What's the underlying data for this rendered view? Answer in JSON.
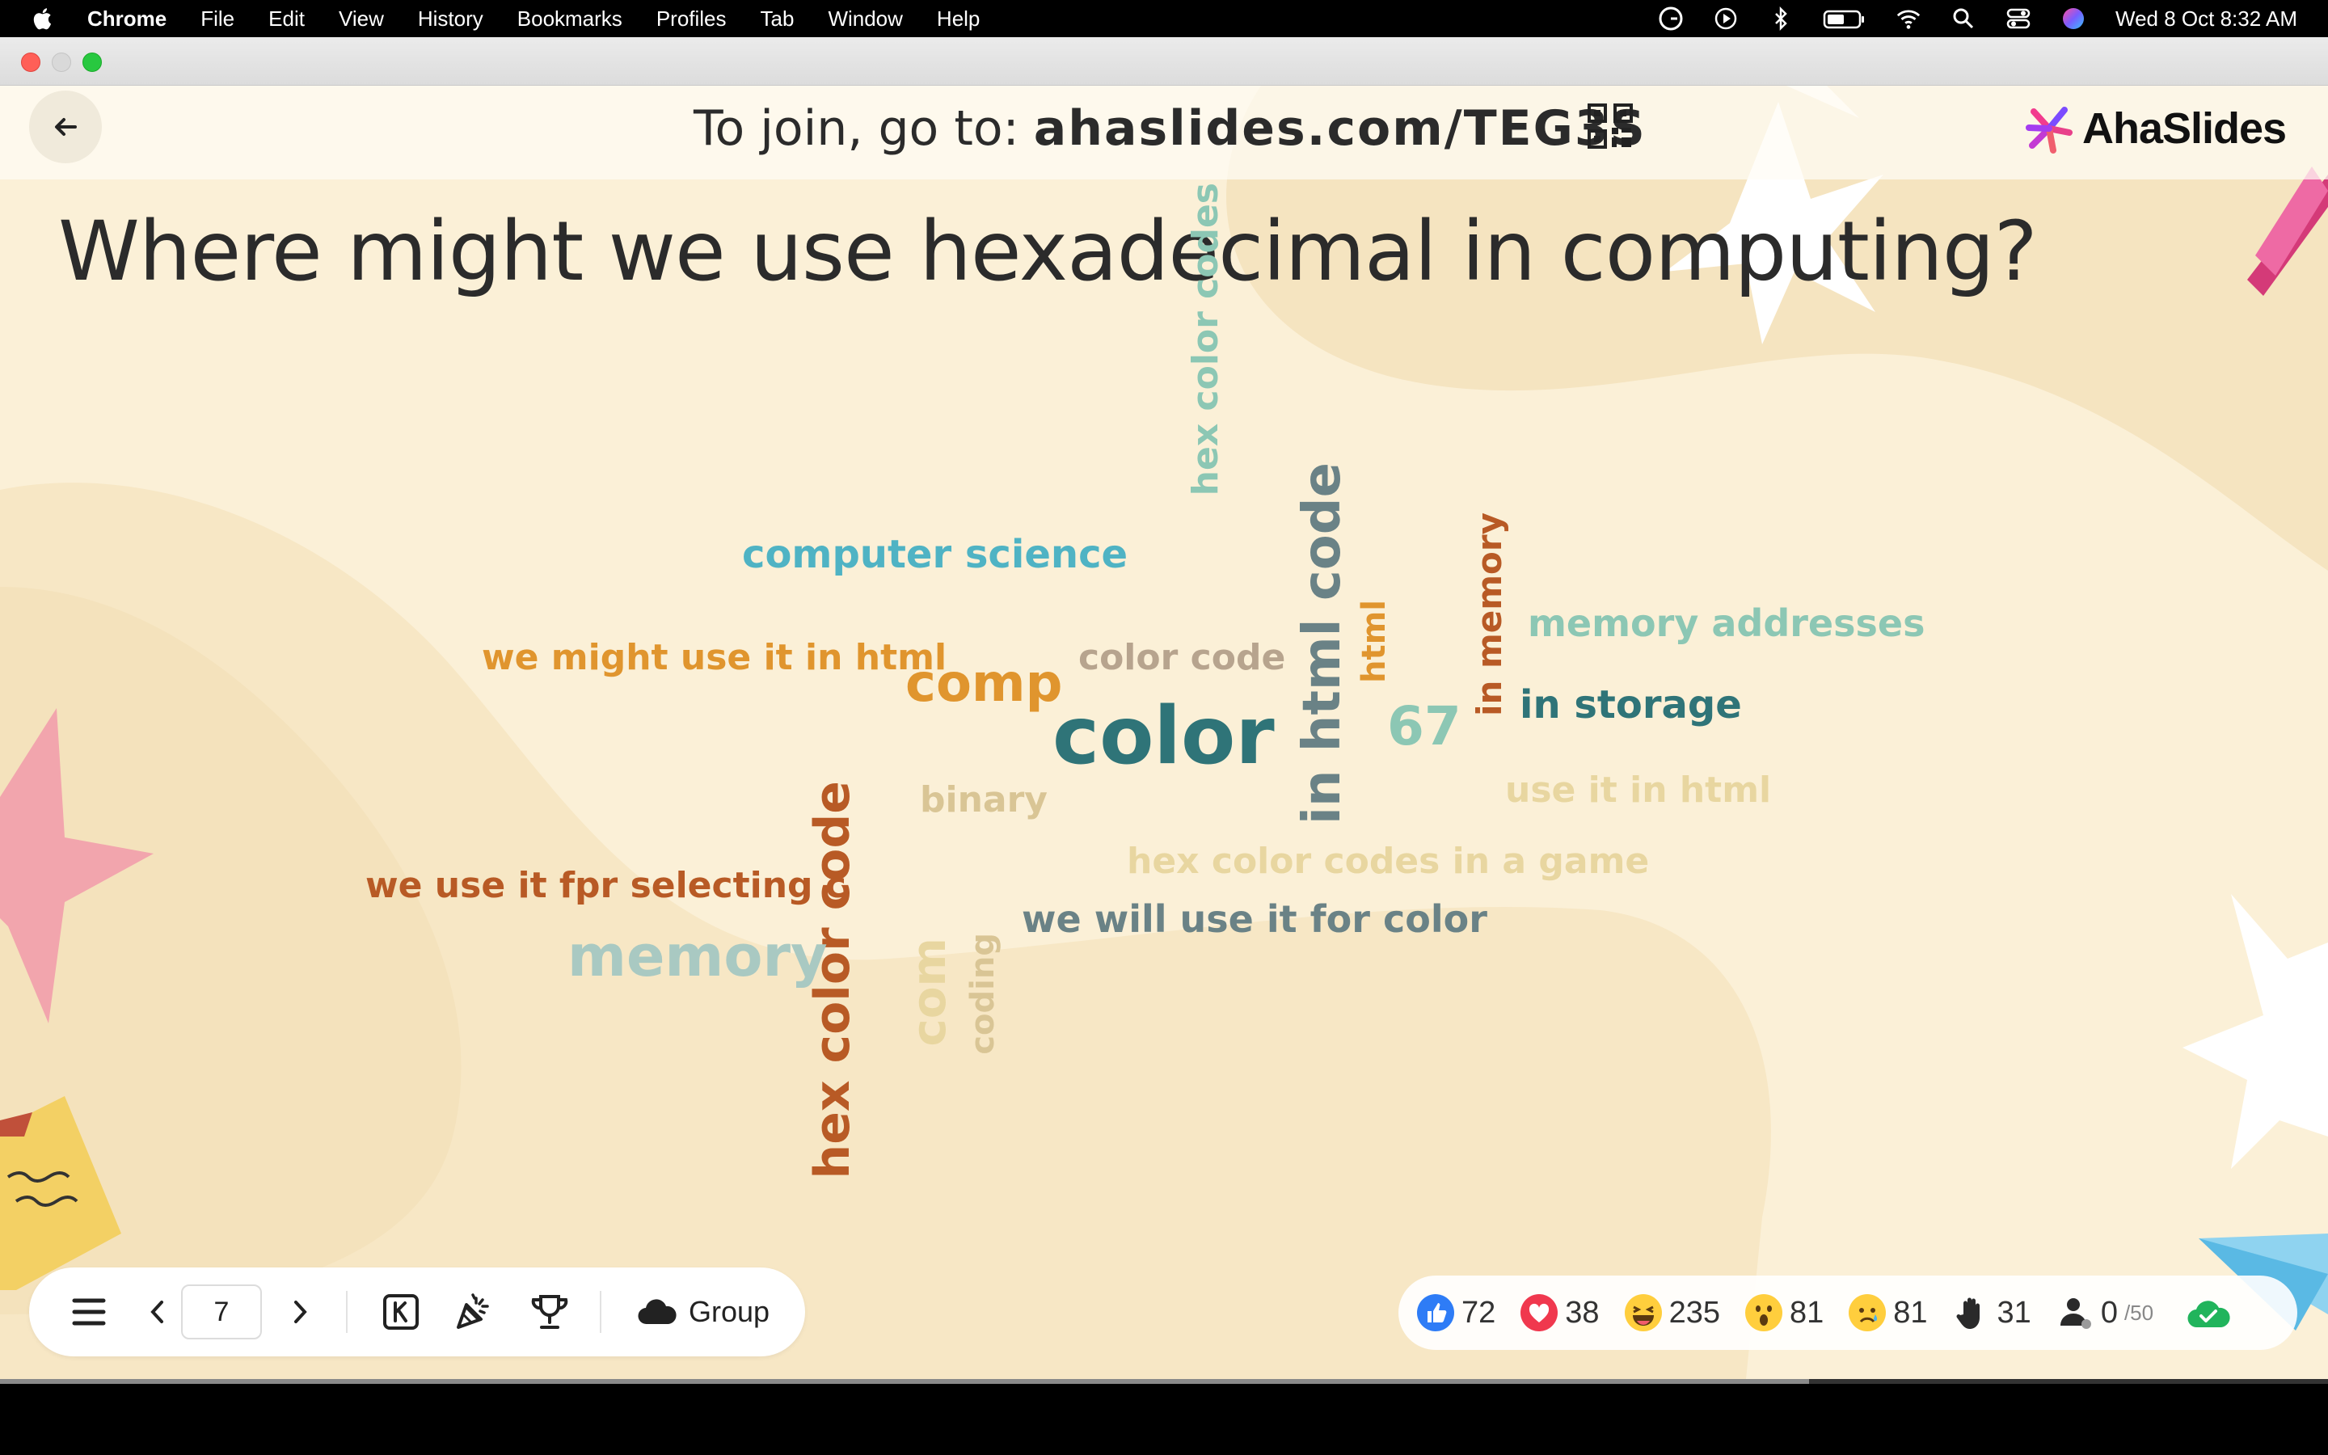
{
  "menubar": {
    "app": "Chrome",
    "items": [
      "File",
      "Edit",
      "View",
      "History",
      "Bookmarks",
      "Profiles",
      "Tab",
      "Window",
      "Help"
    ],
    "clock": "Wed 8 Oct  8:32 AM",
    "icons": [
      "grammarly-icon",
      "play-icon",
      "bluetooth-icon",
      "battery-icon",
      "wifi-icon",
      "search-icon",
      "control-center-icon",
      "siri-icon"
    ]
  },
  "header": {
    "join_prefix": "To join, go to:",
    "join_code": "ahaslides.com/TEG3S",
    "brand": "AhaSlides"
  },
  "question": "Where might we use hexadecimal in computing?",
  "words": [
    {
      "text": "hex color codes",
      "color": "#8cc7b4",
      "vertical": true
    },
    {
      "text": "computer science",
      "color": "#4fb3c4",
      "vertical": false
    },
    {
      "text": "in html code",
      "color": "#6a8286",
      "vertical": true
    },
    {
      "text": "html",
      "color": "#e0952e",
      "vertical": true
    },
    {
      "text": "in memory",
      "color": "#b85a25",
      "vertical": true
    },
    {
      "text": "memory addresses",
      "color": "#8cc7b4",
      "vertical": false
    },
    {
      "text": "we might use it in html",
      "color": "#e0952e",
      "vertical": false
    },
    {
      "text": "color code",
      "color": "#b7a48e",
      "vertical": false
    },
    {
      "text": "comp",
      "color": "#e0952e",
      "vertical": false
    },
    {
      "text": "in storage",
      "color": "#2f7478",
      "vertical": false
    },
    {
      "text": "color",
      "color": "#2f7478",
      "vertical": false
    },
    {
      "text": "67",
      "color": "#8cc7b4",
      "vertical": false
    },
    {
      "text": "hex color code",
      "color": "#b85a25",
      "vertical": true
    },
    {
      "text": "binary",
      "color": "#d9c595",
      "vertical": false
    },
    {
      "text": "use it in html",
      "color": "#e8d6a0",
      "vertical": false
    },
    {
      "text": "hex color codes in a game",
      "color": "#e8d6a0",
      "vertical": false
    },
    {
      "text": "we use it fpr selecting c",
      "color": "#b85a25",
      "vertical": false
    },
    {
      "text": "com",
      "color": "#e8d6a0",
      "vertical": true
    },
    {
      "text": "coding",
      "color": "#d9c595",
      "vertical": true
    },
    {
      "text": "we will use it for color",
      "color": "#6a8286",
      "vertical": false
    },
    {
      "text": "memory",
      "color": "#a9c9c2",
      "vertical": false
    }
  ],
  "toolbar": {
    "page": "7",
    "group_label": "Group"
  },
  "reactions": {
    "like": "72",
    "heart": "38",
    "laugh": "235",
    "wow": "81",
    "sad": "81",
    "hand": "31",
    "participants": "0",
    "participants_cap": "/50"
  },
  "slide_progress": 0.777
}
